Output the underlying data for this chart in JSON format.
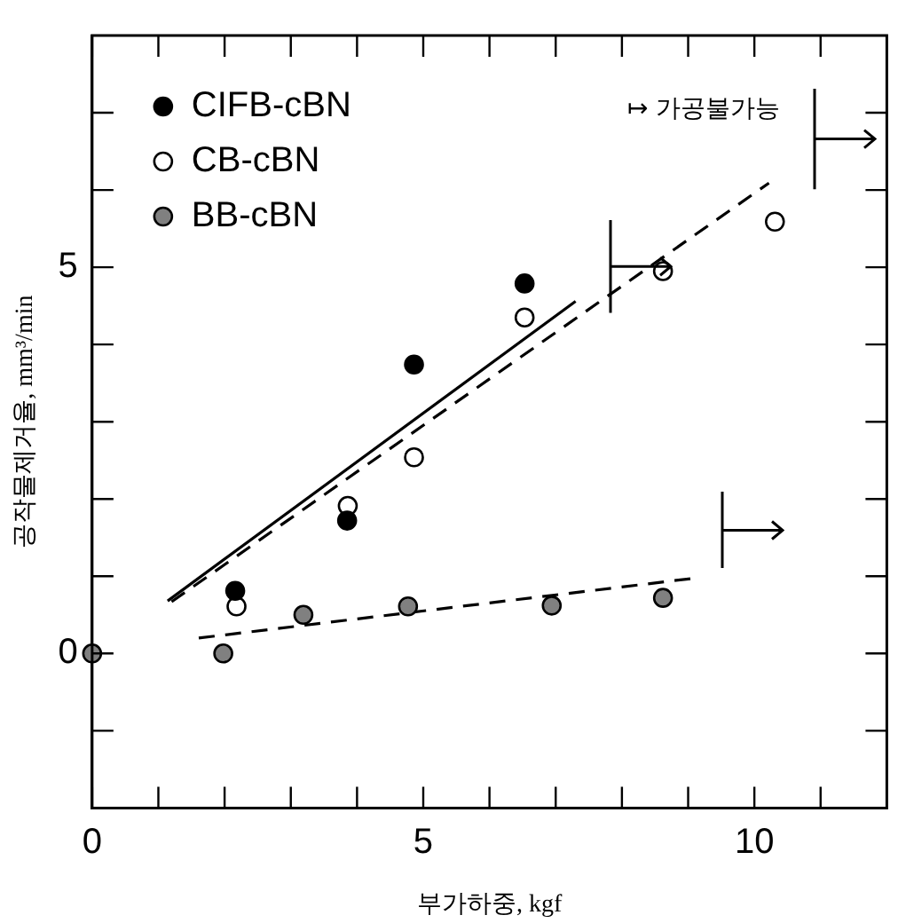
{
  "chart_data": {
    "type": "scatter",
    "xlabel": "부가하중, kgf",
    "ylabel": "공작물제거율, mm³/min",
    "xlim": [
      0,
      12
    ],
    "ylim": [
      -2,
      8
    ],
    "xticks": [
      0,
      {
        "value": 1,
        "label": null
      },
      {
        "value": 2,
        "label": null
      },
      {
        "value": 3,
        "label": null
      },
      {
        "value": 4,
        "label": null
      },
      5,
      {
        "value": 6,
        "label": null
      },
      {
        "value": 7,
        "label": null
      },
      {
        "value": 8,
        "label": null
      },
      {
        "value": 9,
        "label": null
      },
      10,
      {
        "value": 11,
        "label": null
      }
    ],
    "yticks": [
      {
        "value": -1,
        "label": null
      },
      0,
      {
        "value": 1,
        "label": null
      },
      {
        "value": 2,
        "label": null
      },
      {
        "value": 3,
        "label": null
      },
      {
        "value": 4,
        "label": null
      },
      5,
      {
        "value": 6,
        "label": null
      },
      {
        "value": 7,
        "label": null
      }
    ],
    "grid": false,
    "legend": "top left",
    "marker": "circle",
    "annotations": [
      "↦ 가공불가능"
    ],
    "series": [
      {
        "name": "CIFB-cBN",
        "color": "#000000",
        "x": [
          2.16,
          3.85,
          4.86,
          6.53
        ],
        "values": [
          0.81,
          1.72,
          3.74,
          4.79
        ]
      },
      {
        "name": "CB-cBN",
        "color": "#ffffff",
        "x": [
          2.18,
          3.86,
          4.86,
          6.53,
          8.62,
          10.31
        ],
        "values": [
          0.61,
          1.91,
          2.54,
          4.35,
          4.95,
          5.59
        ]
      },
      {
        "name": "BB-cBN",
        "color": "#808080",
        "x": [
          0,
          1.98,
          3.19,
          4.77,
          6.94,
          8.62
        ],
        "values": [
          0,
          0,
          0.5,
          0.61,
          0.62,
          0.72
        ]
      },
      {
        "type": "line",
        "color": "#000000",
        "line_style": "solid",
        "marker": "none",
        "x": [
          1.14,
          7.3
        ],
        "values": [
          0.68,
          4.56
        ]
      },
      {
        "type": "line",
        "color": "#000000",
        "line_style": "dashed",
        "marker": "none",
        "x": [
          1.2,
          10.22
        ],
        "values": [
          0.67,
          6.09
        ]
      },
      {
        "type": "line",
        "color": "#000000",
        "line_style": "dashed",
        "marker": "none",
        "x": [
          1.61,
          9.05
        ],
        "values": [
          0.2,
          0.97
        ]
      }
    ]
  }
}
